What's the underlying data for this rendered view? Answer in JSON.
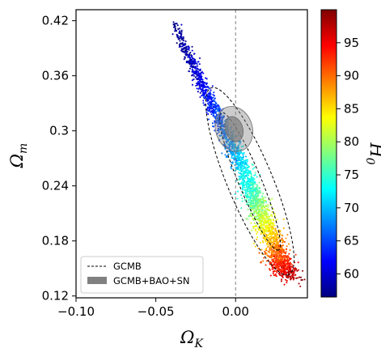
{
  "chart_data": {
    "type": "scatter",
    "title": "",
    "xlabel": "Ω_K",
    "ylabel": "Ω_m",
    "colorbar_label": "H_0",
    "xlim": [
      -0.1,
      0.045
    ],
    "ylim": [
      0.118,
      0.432
    ],
    "clim": [
      56.5,
      100
    ],
    "x_ticks": [
      -0.1,
      -0.05,
      0.0
    ],
    "x_tick_labels": [
      "−0.10",
      "−0.05",
      "0.00"
    ],
    "y_ticks": [
      0.12,
      0.18,
      0.24,
      0.3,
      0.36,
      0.42
    ],
    "y_tick_labels": [
      "0.12",
      "0.18",
      "0.24",
      "0.3",
      "0.36",
      "0.42"
    ],
    "colorbar_ticks": [
      60,
      65,
      70,
      75,
      80,
      85,
      90,
      95
    ],
    "colorbar_tick_labels": [
      "60",
      "65",
      "70",
      "75",
      "80",
      "85",
      "90",
      "95"
    ],
    "colormap": "jet",
    "reference_line": {
      "x": 0.0,
      "style": "dashed",
      "color": "#808080"
    },
    "legend": {
      "placement": "lower-left",
      "entries": [
        {
          "label": "GCMB",
          "style": "dashed-line",
          "color": "#000000"
        },
        {
          "label": "GCMB+BAO+SN",
          "style": "filled-patch",
          "color": "#808080"
        }
      ]
    },
    "series": [
      {
        "name": "GCMB",
        "kind": "mcmc-samples-colored-by-H0",
        "ridge": [
          {
            "omega_k": -0.038,
            "omega_m": 0.415,
            "h0": 57
          },
          {
            "omega_k": -0.03,
            "omega_m": 0.385,
            "h0": 58.5
          },
          {
            "omega_k": -0.022,
            "omega_m": 0.355,
            "h0": 61
          },
          {
            "omega_k": -0.014,
            "omega_m": 0.325,
            "h0": 64
          },
          {
            "omega_k": -0.005,
            "omega_m": 0.295,
            "h0": 67.5
          },
          {
            "omega_k": 0.003,
            "omega_m": 0.265,
            "h0": 71
          },
          {
            "omega_k": 0.01,
            "omega_m": 0.235,
            "h0": 75
          },
          {
            "omega_k": 0.016,
            "omega_m": 0.21,
            "h0": 80
          },
          {
            "omega_k": 0.022,
            "omega_m": 0.185,
            "h0": 86
          },
          {
            "omega_k": 0.028,
            "omega_m": 0.16,
            "h0": 92
          },
          {
            "omega_k": 0.031,
            "omega_m": 0.142,
            "h0": 97
          }
        ],
        "contours": [
          {
            "level": "68%",
            "style": "dashed",
            "color": "#000000"
          },
          {
            "level": "95%",
            "style": "dashed",
            "color": "#000000"
          }
        ]
      },
      {
        "name": "GCMB+BAO+SN",
        "kind": "filled-contours",
        "color": "#808080",
        "center": {
          "omega_k": -0.001,
          "omega_m": 0.302
        },
        "contours": [
          {
            "level": "68%",
            "half_width_omega_k": 0.0055,
            "half_height_omega_m": 0.014
          },
          {
            "level": "95%",
            "half_width_omega_k": 0.0115,
            "half_height_omega_m": 0.025
          }
        ]
      }
    ]
  }
}
